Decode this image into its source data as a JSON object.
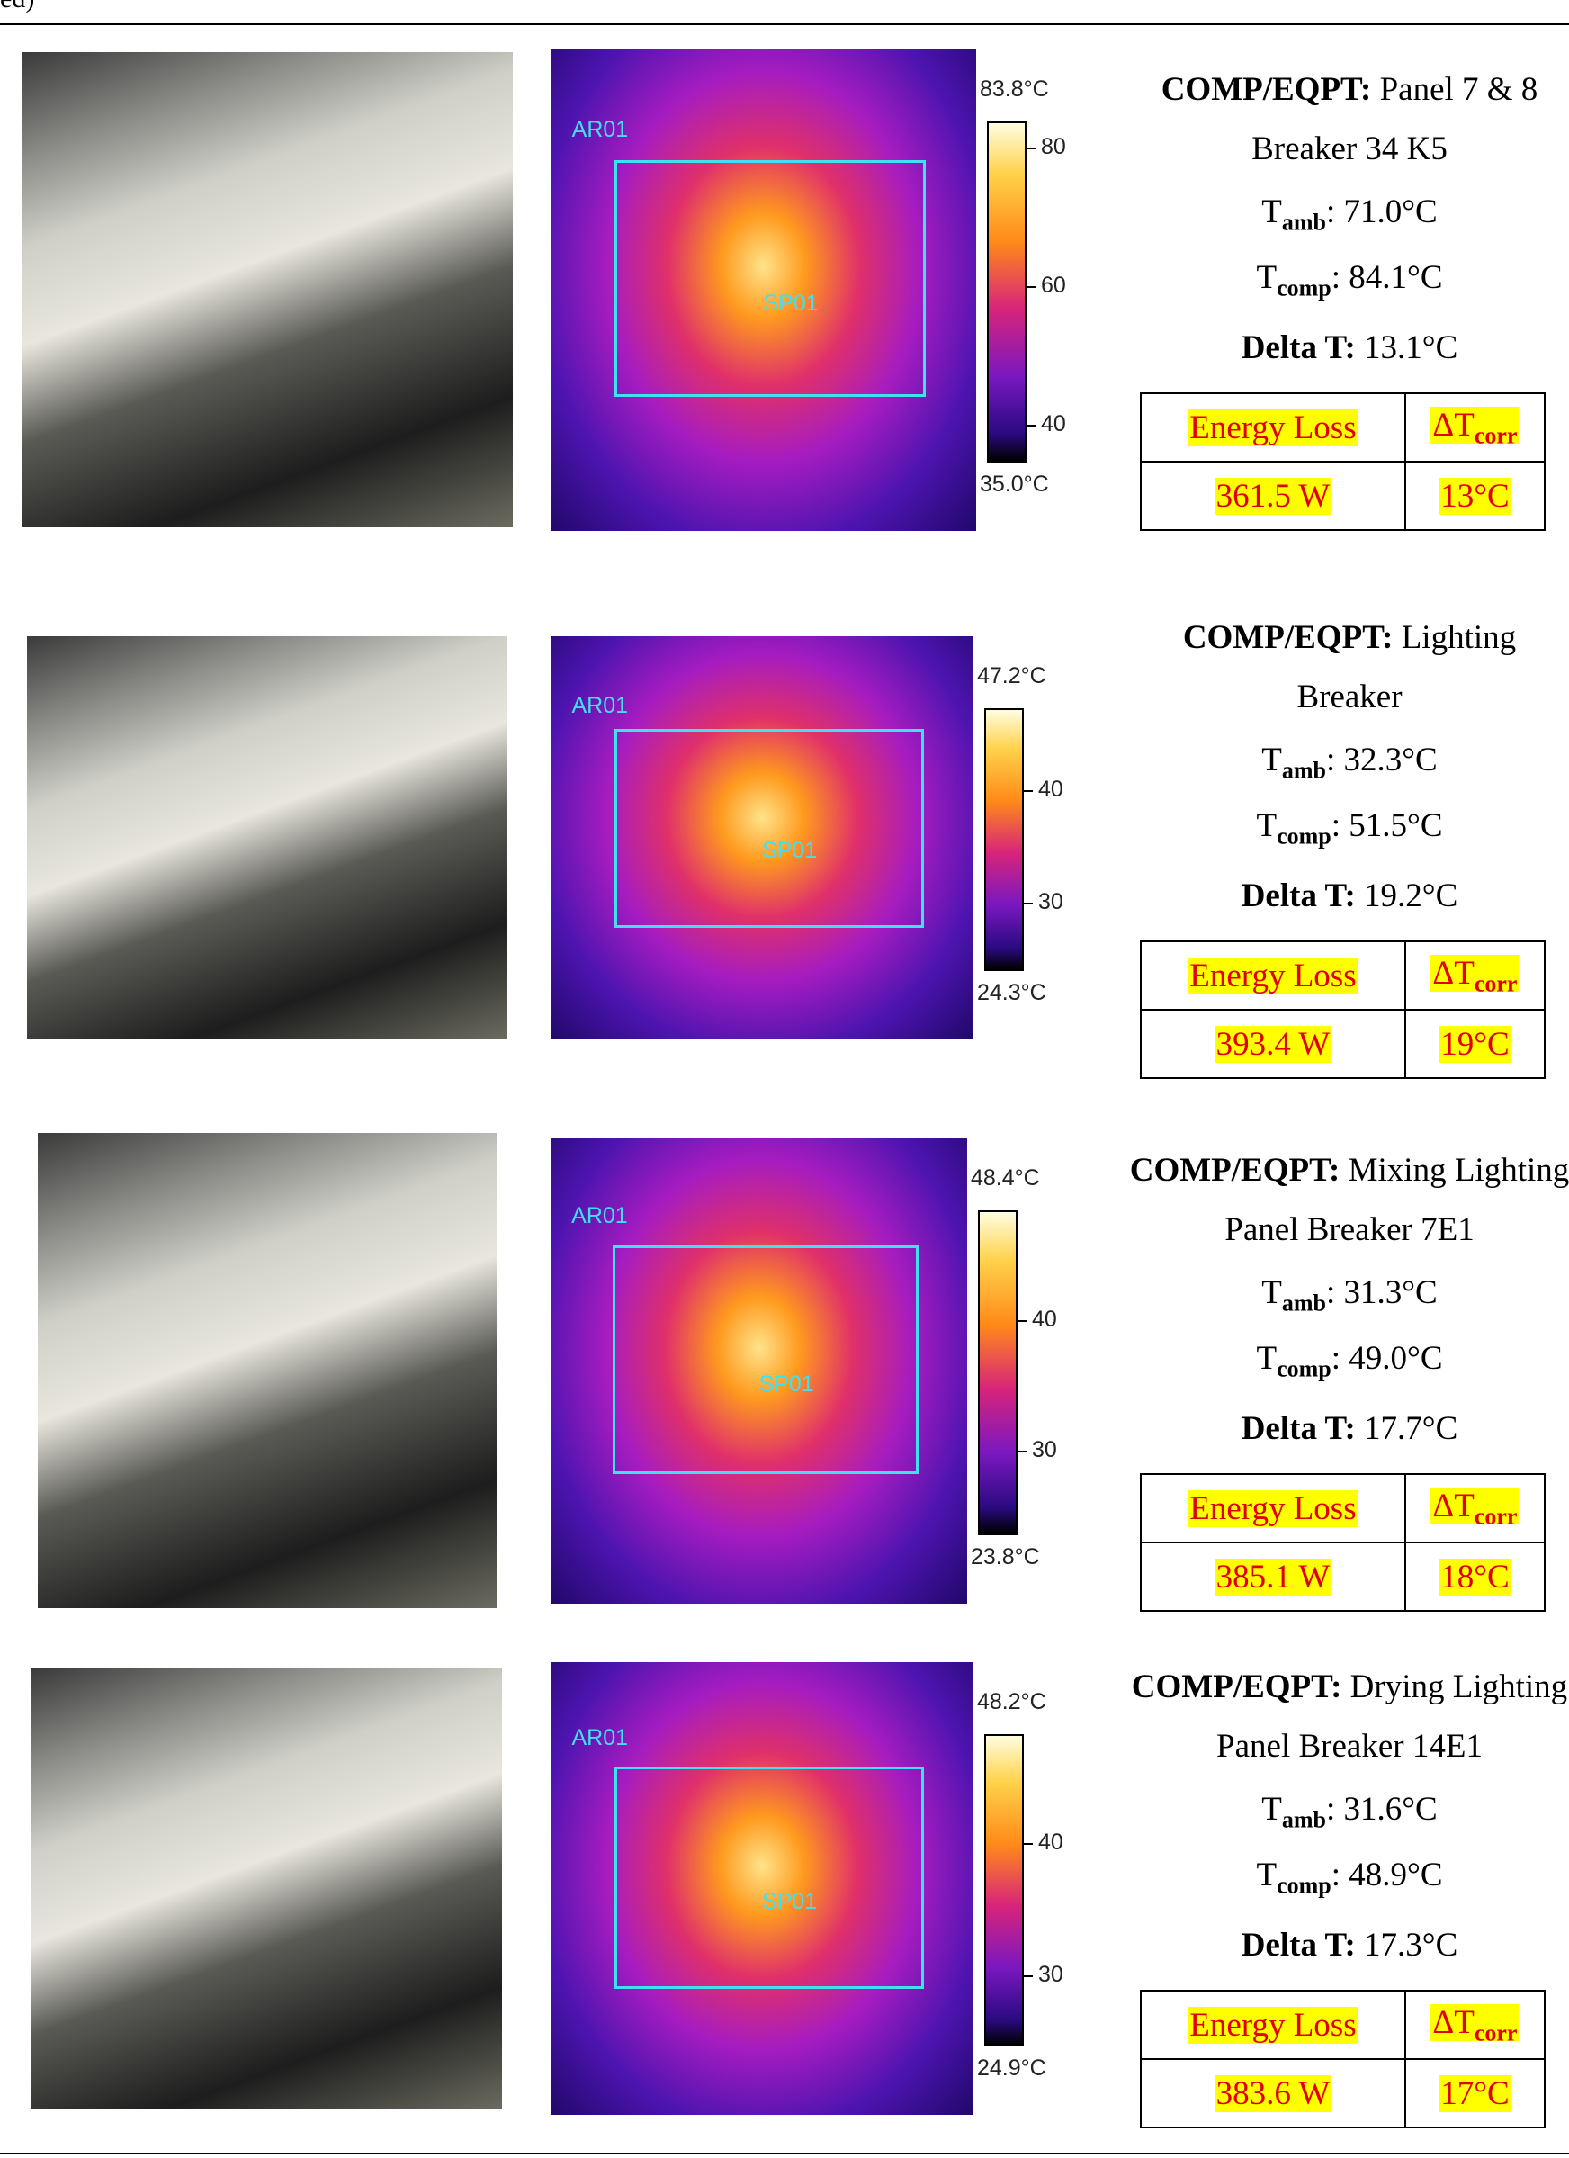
{
  "header_fragment": "ed)",
  "rows": [
    {
      "comp": {
        "label": "COMP/EQPT:",
        "text": "Panel 7 & 8",
        "line2": "Breaker 34 K5"
      },
      "t_amb": {
        "symbol": "T",
        "sub": "amb",
        "value": ": 71.0°C"
      },
      "t_comp": {
        "symbol": "T",
        "sub": "comp",
        "value": ": 84.1°C"
      },
      "delta": {
        "label": "Delta T:",
        "value": "13.1°C"
      },
      "table": {
        "energy_header": "Energy Loss",
        "dt_header": {
          "symbol": "ΔT",
          "sub": "corr"
        },
        "values": [
          "361.5 W",
          "13°C"
        ]
      },
      "thermal": {
        "max": "83.8°C",
        "min": "35.0°C",
        "ticks": [
          "80",
          "60",
          "40"
        ],
        "area": "AR01",
        "spot": "SP01"
      }
    },
    {
      "comp": {
        "label": "COMP/EQPT:",
        "text": "Lighting",
        "line2": "Breaker"
      },
      "t_amb": {
        "symbol": "T",
        "sub": "amb",
        "value": ": 32.3°C"
      },
      "t_comp": {
        "symbol": "T",
        "sub": "comp",
        "value": ": 51.5°C"
      },
      "delta": {
        "label": "Delta T:",
        "value": "19.2°C"
      },
      "table": {
        "energy_header": "Energy Loss",
        "dt_header": {
          "symbol": "ΔT",
          "sub": "corr"
        },
        "values": [
          "393.4 W",
          "19°C"
        ]
      },
      "thermal": {
        "max": "47.2°C",
        "min": "24.3°C",
        "ticks": [
          "40",
          "30"
        ],
        "area": "AR01",
        "spot": "SP01"
      }
    },
    {
      "comp": {
        "label": "COMP/EQPT:",
        "text": "Mixing Lighting",
        "line2": "Panel Breaker 7E1"
      },
      "t_amb": {
        "symbol": "T",
        "sub": "amb",
        "value": ": 31.3°C"
      },
      "t_comp": {
        "symbol": "T",
        "sub": "comp",
        "value": ": 49.0°C"
      },
      "delta": {
        "label": "Delta T:",
        "value": "17.7°C"
      },
      "table": {
        "energy_header": "Energy Loss",
        "dt_header": {
          "symbol": "ΔT",
          "sub": "corr"
        },
        "values": [
          "385.1 W",
          "18°C"
        ]
      },
      "thermal": {
        "max": "48.4°C",
        "min": "23.8°C",
        "ticks": [
          "40",
          "30"
        ],
        "area": "AR01",
        "spot": "SP01"
      }
    },
    {
      "comp": {
        "label": "COMP/EQPT:",
        "text": "Drying Lighting",
        "line2": "Panel Breaker 14E1"
      },
      "t_amb": {
        "symbol": "T",
        "sub": "amb",
        "value": ": 31.6°C"
      },
      "t_comp": {
        "symbol": "T",
        "sub": "comp",
        "value": ": 48.9°C"
      },
      "delta": {
        "label": "Delta T:",
        "value": "17.3°C"
      },
      "table": {
        "energy_header": "Energy Loss",
        "dt_header": {
          "symbol": "ΔT",
          "sub": "corr"
        },
        "values": [
          "383.6 W",
          "17°C"
        ]
      },
      "thermal": {
        "max": "48.2°C",
        "min": "24.9°C",
        "ticks": [
          "40",
          "30"
        ],
        "area": "AR01",
        "spot": "SP01"
      }
    }
  ]
}
